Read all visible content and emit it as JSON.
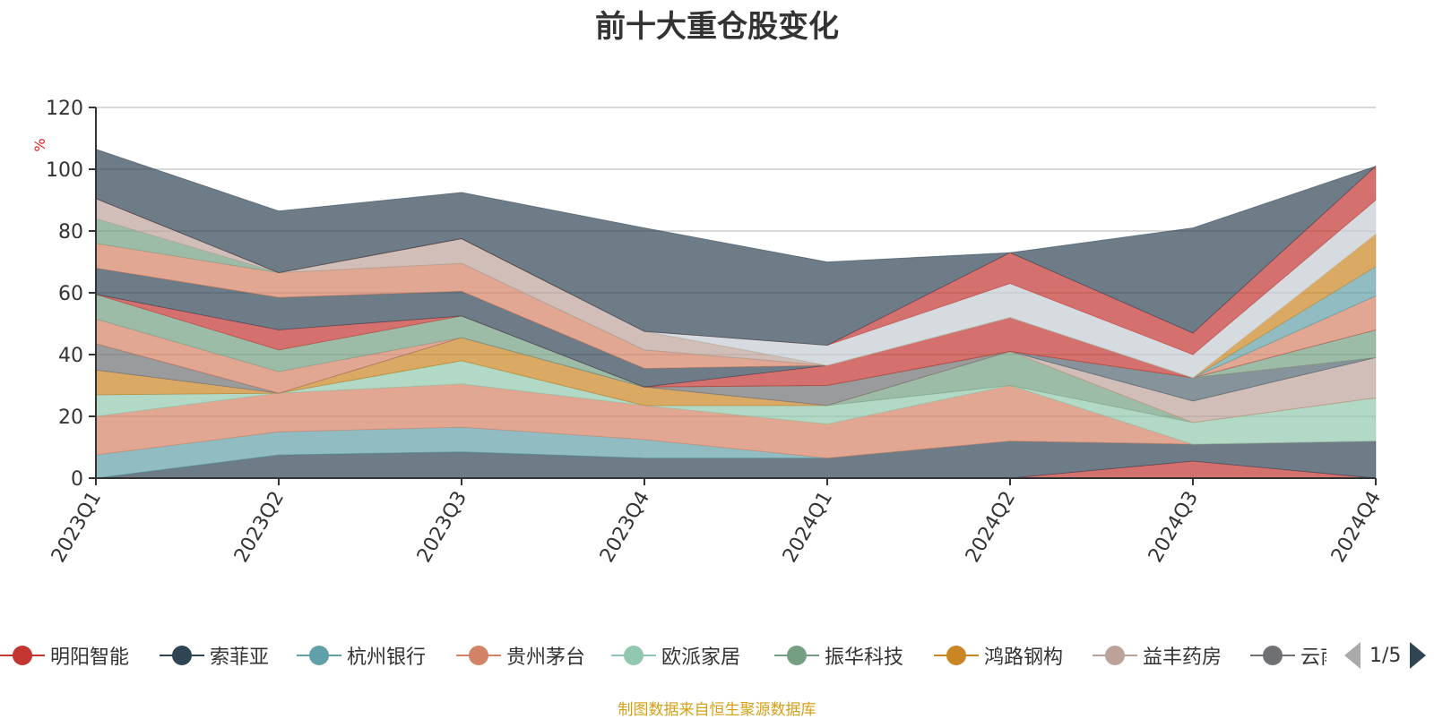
{
  "title": "前十大重仓股变化",
  "source_note": "制图数据来自恒生聚源数据库",
  "legend_page": "1/5",
  "chart_data": {
    "type": "area",
    "title": "前十大重仓股变化",
    "ylabel": "%",
    "ylim": [
      0,
      120
    ],
    "yticks": [
      0,
      20,
      40,
      60,
      80,
      100,
      120
    ],
    "categories": [
      "2023Q1",
      "2023Q2",
      "2023Q3",
      "2023Q4",
      "2024Q1",
      "2024Q2",
      "2024Q3",
      "2024Q4"
    ],
    "grid": true,
    "legend_position": "bottom",
    "series": [
      {
        "name": "明阳智能",
        "color": "#c23531",
        "values": [
          0,
          0,
          0,
          0,
          0,
          0,
          5.5,
          0
        ]
      },
      {
        "name": "索菲亚",
        "color": "#2f4554",
        "values": [
          0,
          7.5,
          8.5,
          6.5,
          6.5,
          12,
          5.5,
          12
        ]
      },
      {
        "name": "杭州银行",
        "color": "#61a0a8",
        "values": [
          7.5,
          7.5,
          8,
          6,
          0,
          0,
          0,
          0
        ]
      },
      {
        "name": "贵州茅台",
        "color": "#d48265",
        "values": [
          12.5,
          12.5,
          14,
          11,
          11,
          18,
          0,
          0
        ]
      },
      {
        "name": "欧派家居",
        "color": "#91c7ae",
        "values": [
          7,
          0,
          7.5,
          0,
          6,
          0,
          7,
          14
        ]
      },
      {
        "name": "振华科技",
        "color": "#749f83",
        "values": [
          0,
          0,
          0,
          0,
          0,
          11,
          0,
          0
        ]
      },
      {
        "name": "鸿路钢构",
        "color": "#ca8622",
        "values": [
          8,
          0,
          7.5,
          6,
          0,
          0,
          0,
          0
        ]
      },
      {
        "name": "益丰药房",
        "color": "#bda29a",
        "values": [
          0,
          0,
          0,
          0,
          0,
          0,
          7,
          13
        ]
      },
      {
        "name": "云南",
        "color": "#6e7074",
        "values": [
          8.5,
          0,
          0,
          0,
          6.5,
          0,
          0,
          0
        ]
      }
    ],
    "top_layers": [
      {
        "color": "#546570",
        "values": [
          0,
          0,
          0,
          0,
          0,
          0,
          7.5,
          0
        ]
      },
      {
        "color": "#d48265",
        "values": [
          8,
          7,
          0,
          0,
          0,
          0,
          0,
          0
        ]
      },
      {
        "color": "#749f83",
        "values": [
          8,
          7,
          7,
          0,
          0,
          0,
          0,
          9
        ]
      },
      {
        "color": "#c23531",
        "values": [
          0,
          6.5,
          0,
          0,
          6.5,
          11,
          0,
          0
        ]
      },
      {
        "color": "#2f4554",
        "values": [
          8.5,
          10.5,
          8,
          6,
          0,
          0,
          0,
          0
        ]
      },
      {
        "color": "#d48265",
        "values": [
          8,
          8,
          9,
          6,
          0,
          0,
          0,
          11
        ]
      },
      {
        "color": "#749f83",
        "values": [
          8,
          0,
          0,
          0,
          0,
          0,
          0,
          0
        ]
      },
      {
        "color": "#bda29a",
        "values": [
          6.5,
          0,
          8,
          6,
          0,
          0,
          0,
          0
        ]
      },
      {
        "color": "#61a0a8",
        "values": [
          0,
          0,
          0,
          0,
          0,
          0,
          0,
          9.5
        ]
      },
      {
        "color": "#ca8622",
        "values": [
          0,
          0,
          0,
          0,
          0,
          0,
          0,
          10.5
        ]
      },
      {
        "color": "#c4ccd3",
        "values": [
          0,
          0,
          0,
          0,
          6.5,
          11,
          7.5,
          11
        ]
      },
      {
        "color": "#c23531",
        "values": [
          0,
          0,
          0,
          0,
          0,
          10,
          7,
          11
        ]
      },
      {
        "color": "#2f4554",
        "values": [
          16,
          20,
          15,
          33.5,
          27,
          0,
          34,
          0
        ]
      }
    ]
  }
}
